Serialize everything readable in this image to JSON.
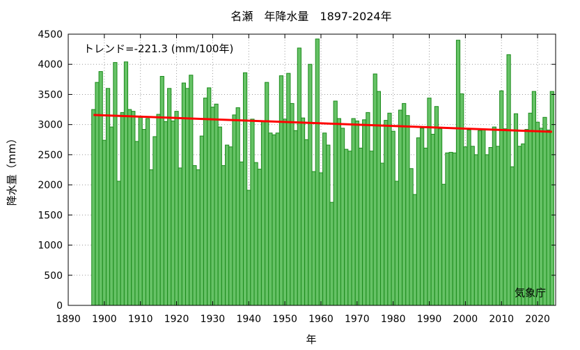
{
  "chart_data": {
    "type": "bar",
    "title": "名瀬　年降水量　1897-2024年",
    "xlabel": "年",
    "ylabel": "降水量（mm）",
    "xlim": [
      1890,
      2025
    ],
    "ylim": [
      0,
      4500
    ],
    "xticks": [
      1890,
      1900,
      1910,
      1920,
      1930,
      1940,
      1950,
      1960,
      1970,
      1980,
      1990,
      2000,
      2010,
      2020
    ],
    "yticks": [
      0,
      500,
      1000,
      1500,
      2000,
      2500,
      3000,
      3500,
      4000,
      4500
    ],
    "grid": true,
    "trend_label": "トレンド=-221.3 (mm/100年)",
    "trend": {
      "x1": 1897,
      "y1": 3160,
      "x2": 2024,
      "y2": 2880
    },
    "source": "気象庁",
    "colors": {
      "bar_fill": "#66c266",
      "bar_stroke": "#1a8a1a",
      "trend": "#ff0000",
      "grid": "#999999"
    },
    "x": [
      1897,
      1898,
      1899,
      1900,
      1901,
      1902,
      1903,
      1904,
      1905,
      1906,
      1907,
      1908,
      1909,
      1910,
      1911,
      1912,
      1913,
      1914,
      1915,
      1916,
      1917,
      1918,
      1919,
      1920,
      1921,
      1922,
      1923,
      1924,
      1925,
      1926,
      1927,
      1928,
      1929,
      1930,
      1931,
      1932,
      1933,
      1934,
      1935,
      1936,
      1937,
      1938,
      1939,
      1940,
      1941,
      1942,
      1943,
      1944,
      1945,
      1946,
      1947,
      1948,
      1949,
      1950,
      1951,
      1952,
      1953,
      1954,
      1955,
      1956,
      1957,
      1958,
      1959,
      1960,
      1961,
      1962,
      1963,
      1964,
      1965,
      1966,
      1967,
      1968,
      1969,
      1970,
      1971,
      1972,
      1973,
      1974,
      1975,
      1976,
      1977,
      1978,
      1979,
      1980,
      1981,
      1982,
      1983,
      1984,
      1985,
      1986,
      1987,
      1988,
      1989,
      1990,
      1991,
      1992,
      1993,
      1994,
      1995,
      1996,
      1997,
      1998,
      1999,
      2000,
      2001,
      2002,
      2003,
      2004,
      2005,
      2006,
      2007,
      2008,
      2009,
      2010,
      2011,
      2012,
      2013,
      2014,
      2015,
      2016,
      2017,
      2018,
      2019,
      2020,
      2021,
      2022,
      2023,
      2024
    ],
    "values": [
      3250,
      3700,
      3880,
      2740,
      3600,
      2960,
      4030,
      2060,
      3200,
      4040,
      3250,
      3220,
      2720,
      3120,
      2920,
      3100,
      2250,
      2800,
      3170,
      3800,
      3050,
      3600,
      3060,
      3220,
      2280,
      3690,
      3600,
      3820,
      2320,
      2250,
      2810,
      3440,
      3610,
      3290,
      3340,
      2960,
      2320,
      2660,
      2630,
      3160,
      3280,
      2380,
      3860,
      1910,
      3090,
      2370,
      2260,
      3060,
      3700,
      2860,
      2830,
      2860,
      3810,
      3090,
      3850,
      3350,
      2900,
      4270,
      3110,
      2750,
      4000,
      2220,
      4420,
      2200,
      2860,
      2660,
      1710,
      3390,
      3100,
      2940,
      2590,
      2560,
      3100,
      3060,
      2610,
      3080,
      3200,
      2560,
      3840,
      3550,
      2360,
      3070,
      3190,
      2890,
      2060,
      3240,
      3350,
      3150,
      2270,
      1840,
      2780,
      2940,
      2610,
      3440,
      2840,
      3300,
      2930,
      2010,
      2530,
      2540,
      2530,
      4400,
      3510,
      2630,
      2910,
      2640,
      2500,
      2900,
      2910,
      2500,
      2620,
      2960,
      2640,
      3560,
      2930,
      4160,
      2300,
      3180,
      2640,
      2680,
      2920,
      3190,
      3550,
      3040,
      2940,
      3120,
      2910,
      3550
    ]
  }
}
